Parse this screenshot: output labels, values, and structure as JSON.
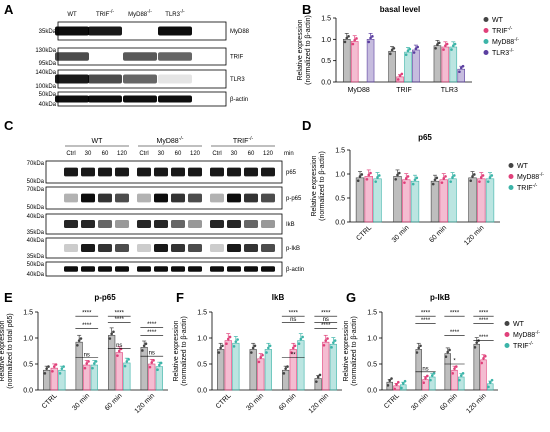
{
  "panels": {
    "A": {
      "letter": "A",
      "lanes": [
        "WT",
        "TRIF-/-",
        "MyD88-/-",
        "TLR3-/-"
      ],
      "rows": [
        {
          "mw": [
            "35kDa"
          ],
          "protein": "MyD88"
        },
        {
          "mw": [
            "130kDa",
            "95kDa"
          ],
          "protein": "TRIF"
        },
        {
          "mw": [
            "140kDa",
            "100kDa"
          ],
          "protein": "TLR3"
        },
        {
          "mw": [
            "50kDa",
            "40kDa"
          ],
          "protein": "β-actin"
        }
      ]
    },
    "C": {
      "letter": "C",
      "groups": [
        "WT",
        "MyD88-/-",
        "TRIF-/-"
      ],
      "timepoints": [
        "Ctrl",
        "30",
        "60",
        "120"
      ],
      "unit": "min",
      "rows": [
        {
          "mw": [
            "70kDa",
            "50kDa"
          ],
          "protein": "p65"
        },
        {
          "mw": [
            "70kDa",
            "50kDa"
          ],
          "protein": "p-p65"
        },
        {
          "mw": [
            "40kDa",
            "35kDa"
          ],
          "protein": "IkB"
        },
        {
          "mw": [
            "40kDa",
            "35kDa"
          ],
          "protein": "p-IkB"
        },
        {
          "mw": [
            "50kDa",
            "40kDa"
          ],
          "protein": "β-actin"
        }
      ]
    }
  },
  "chart_data": [
    {
      "panel": "B",
      "type": "bar",
      "title": "basal level",
      "ylabel": "Relative expression (normalized to β-actin)",
      "ylim": [
        0,
        1.5
      ],
      "yticks": [
        "0.0",
        "0.5",
        "1.0",
        "1.5"
      ],
      "categories": [
        "MyD88",
        "TRIF",
        "TLR3"
      ],
      "series": [
        {
          "name": "WT",
          "color": "#444444",
          "values": [
            1.0,
            0.72,
            0.85
          ]
        },
        {
          "name": "TRIF-/-",
          "color": "#e0407a",
          "values": [
            0.95,
            0.12,
            0.82
          ]
        },
        {
          "name": "MyD88-/-",
          "color": "#3cb4a8",
          "values": [
            null,
            0.7,
            0.82
          ]
        },
        {
          "name": "TLR3-/-",
          "color": "#5b3fa0",
          "values": [
            1.0,
            0.75,
            0.3
          ]
        }
      ]
    },
    {
      "panel": "D",
      "type": "bar",
      "title": "p65",
      "ylabel": "Relative expression (normalized to β-actin)",
      "ylim": [
        0,
        1.5
      ],
      "yticks": [
        "0.0",
        "0.5",
        "1.0",
        "1.5"
      ],
      "categories": [
        "CTRL",
        "30 min",
        "60 min",
        "120 min"
      ],
      "series": [
        {
          "name": "WT",
          "color": "#444444",
          "values": [
            0.92,
            0.95,
            0.85,
            0.92
          ]
        },
        {
          "name": "MyD88-/-",
          "color": "#e0407a",
          "values": [
            0.95,
            0.88,
            0.88,
            0.9
          ]
        },
        {
          "name": "TRIF-/-",
          "color": "#3cb4a8",
          "values": [
            0.9,
            0.85,
            0.9,
            0.9
          ]
        }
      ]
    },
    {
      "panel": "E",
      "type": "bar",
      "title": "p-p65",
      "ylabel": "Relative expression (normalized to total p65)",
      "ylim": [
        0,
        1.5
      ],
      "yticks": [
        "0.0",
        "0.5",
        "1.0",
        "1.5"
      ],
      "categories": [
        "CTRL",
        "30 min",
        "60 min",
        "120 min"
      ],
      "series": [
        {
          "name": "WT",
          "color": "#444444",
          "values": [
            0.38,
            0.92,
            1.05,
            0.82
          ]
        },
        {
          "name": "MyD88-/-",
          "color": "#e0407a",
          "values": [
            0.42,
            0.48,
            0.72,
            0.5
          ]
        },
        {
          "name": "TRIF-/-",
          "color": "#3cb4a8",
          "values": [
            0.38,
            0.48,
            0.52,
            0.45
          ]
        }
      ],
      "significance": [
        {
          "text": "****",
          "level": 1.42,
          "cat": 1
        },
        {
          "text": "****",
          "level": 1.18,
          "cat": 1
        },
        {
          "text": "ns",
          "level": 0.62,
          "cat": 1
        },
        {
          "text": "****",
          "level": 1.42,
          "cat": 2
        },
        {
          "text": "****",
          "level": 1.3,
          "cat": 2
        },
        {
          "text": "ns",
          "level": 0.8,
          "cat": 2
        },
        {
          "text": "****",
          "level": 1.2,
          "cat": 3
        },
        {
          "text": "****",
          "level": 1.05,
          "cat": 3
        },
        {
          "text": "ns",
          "level": 0.65,
          "cat": 3
        }
      ]
    },
    {
      "panel": "F",
      "type": "bar",
      "title": "IkB",
      "ylabel": "Relative expression (normalized to β-actin)",
      "ylim": [
        0,
        1.5
      ],
      "yticks": [
        "0.0",
        "0.5",
        "1.0",
        "1.5"
      ],
      "categories": [
        "CTRL",
        "30 min",
        "60 min",
        "120 min"
      ],
      "series": [
        {
          "name": "WT",
          "color": "#444444",
          "values": [
            0.78,
            0.78,
            0.38,
            0.22
          ]
        },
        {
          "name": "MyD88-/-",
          "color": "#e0407a",
          "values": [
            0.95,
            0.6,
            0.78,
            0.92
          ]
        },
        {
          "name": "TRIF-/-",
          "color": "#3cb4a8",
          "values": [
            0.9,
            0.78,
            0.95,
            0.88
          ]
        }
      ],
      "significance": [
        {
          "text": "****",
          "level": 1.42,
          "cat": 2
        },
        {
          "text": "ns",
          "level": 1.3,
          "cat": 2
        },
        {
          "text": "**",
          "level": 0.62,
          "cat": 2
        },
        {
          "text": "****",
          "level": 1.42,
          "cat": 3
        },
        {
          "text": "****",
          "level": 1.18,
          "cat": 3
        },
        {
          "text": "ns",
          "level": 1.3,
          "cat": 3
        }
      ]
    },
    {
      "panel": "G",
      "type": "bar",
      "title": "p-IkB",
      "ylabel": "Relative expression (normalized to β-actin)",
      "ylim": [
        0,
        1.5
      ],
      "yticks": [
        "0.0",
        "0.5",
        "1.0",
        "1.5"
      ],
      "categories": [
        "CTRL",
        "30 min",
        "60 min",
        "120 min"
      ],
      "series": [
        {
          "name": "WT",
          "color": "#444444",
          "values": [
            0.15,
            0.78,
            0.7,
            0.88
          ]
        },
        {
          "name": "MyD88-/-",
          "color": "#e0407a",
          "values": [
            0.08,
            0.2,
            0.38,
            0.58
          ]
        },
        {
          "name": "TRIF-/-",
          "color": "#3cb4a8",
          "values": [
            0.1,
            0.25,
            0.25,
            0.12
          ]
        }
      ],
      "significance": [
        {
          "text": "****",
          "level": 1.42,
          "cat": 1
        },
        {
          "text": "****",
          "level": 1.28,
          "cat": 1
        },
        {
          "text": "ns",
          "level": 0.35,
          "cat": 1
        },
        {
          "text": "****",
          "level": 1.42,
          "cat": 2
        },
        {
          "text": "****",
          "level": 1.05,
          "cat": 2
        },
        {
          "text": "*",
          "level": 0.5,
          "cat": 2
        },
        {
          "text": "****",
          "level": 1.42,
          "cat": 3
        },
        {
          "text": "****",
          "level": 1.28,
          "cat": 3
        },
        {
          "text": "****",
          "level": 0.95,
          "cat": 3
        }
      ]
    }
  ]
}
